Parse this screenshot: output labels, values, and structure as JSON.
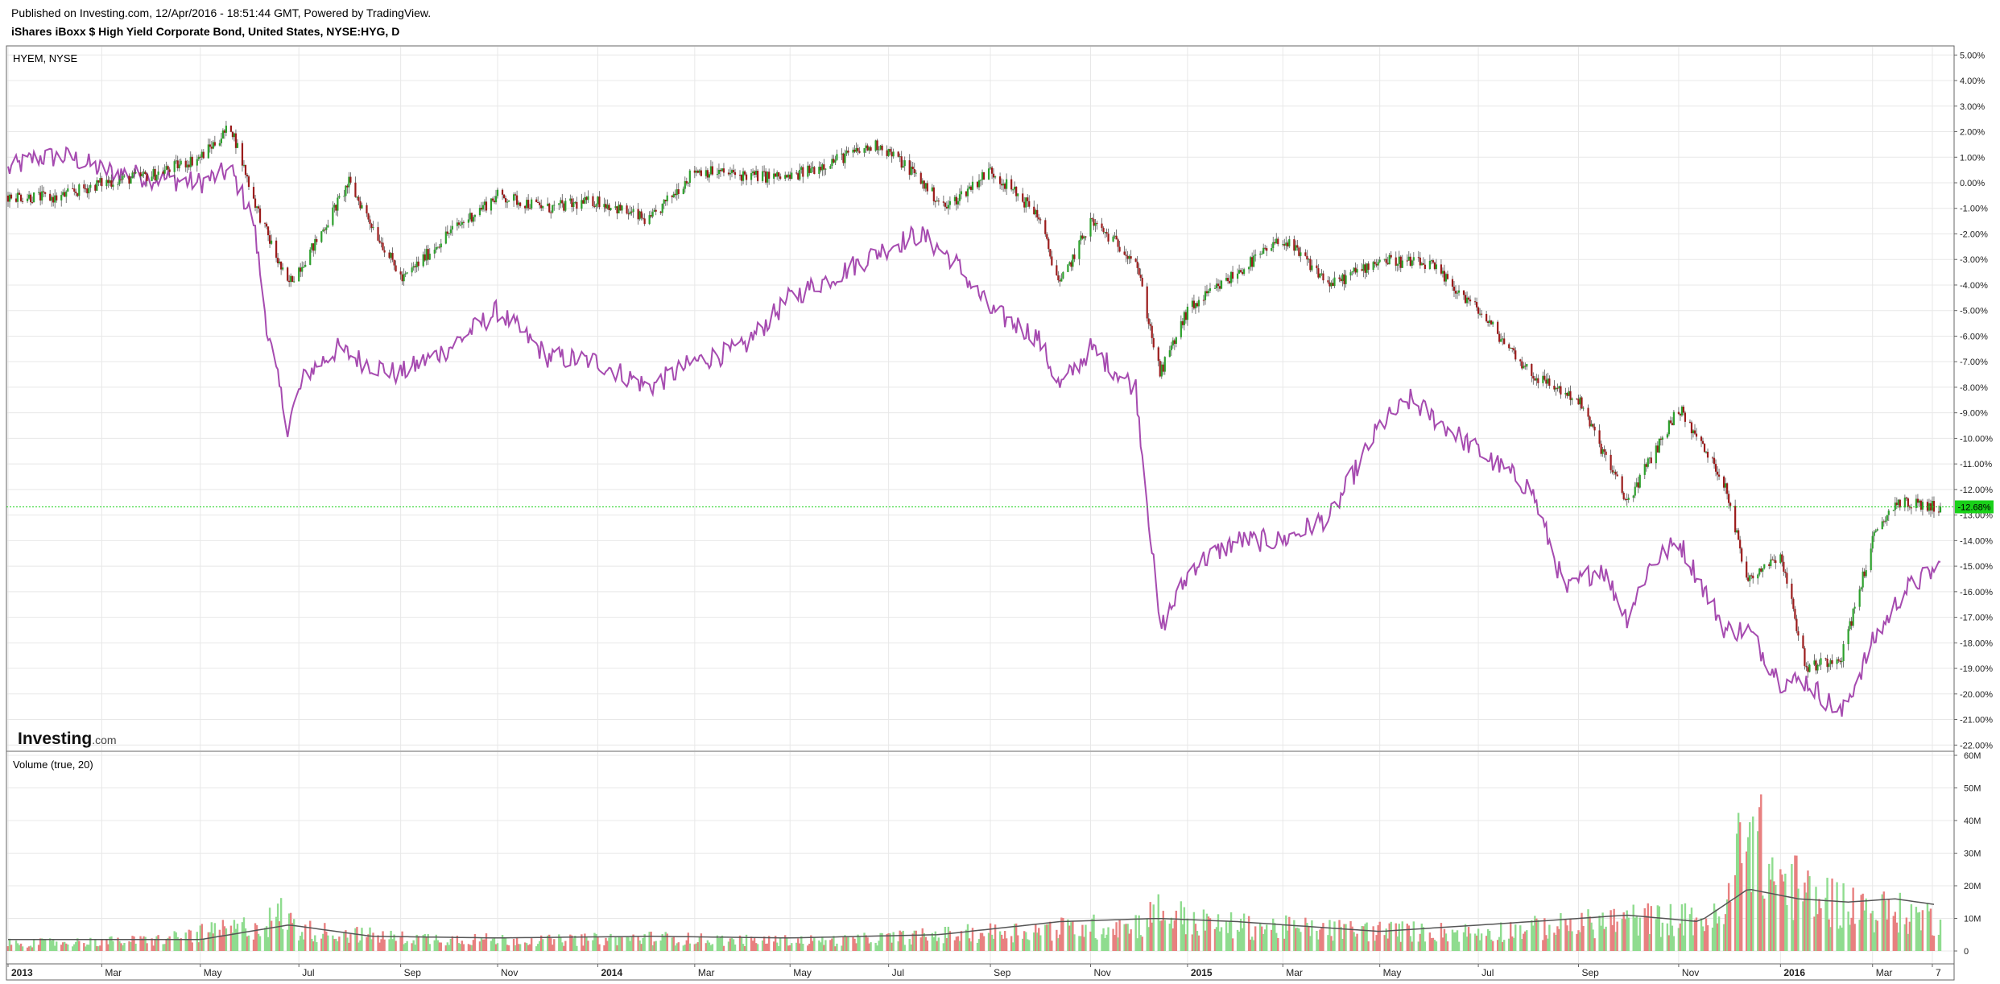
{
  "header": {
    "published": "Published on Investing.com, 12/Apr/2016 - 18:51:44 GMT, Powered by TradingView.",
    "instrument": "iShares iBoxx $ High Yield Corporate Bond, United States, NYSE:HYG, D"
  },
  "main_pane": {
    "label": "HYEM, NYSE",
    "logo_main": "Investing",
    "logo_suffix": ".com"
  },
  "volume_pane": {
    "label": "Volume (true, 20)"
  },
  "last_value_label": "-12.68%",
  "colors": {
    "hyem_line": "#a64bb0",
    "up": "#2ca02c",
    "down": "#9b1b1b",
    "vol_up": "#8fdc8f",
    "vol_down": "#e88080",
    "vol_ma": "#555555",
    "last_marker": "#19d119"
  },
  "chart_data": [
    {
      "type": "line",
      "title": "",
      "x_axis_labels": [
        "2013",
        "Mar",
        "May",
        "Jul",
        "Sep",
        "Nov",
        "2014",
        "Mar",
        "May",
        "Jul",
        "Sep",
        "Nov",
        "2015",
        "Mar",
        "May",
        "Jul",
        "Sep",
        "Nov",
        "2016",
        "Mar",
        "7"
      ],
      "y_axis_labels": [
        "5.00%",
        "4.00%",
        "3.00%",
        "2.00%",
        "1.00%",
        "0.00%",
        "-1.00%",
        "-2.00%",
        "-3.00%",
        "-4.00%",
        "-5.00%",
        "-6.00%",
        "-7.00%",
        "-8.00%",
        "-9.00%",
        "-10.00%",
        "-11.00%",
        "-12.00%",
        "-13.00%",
        "-14.00%",
        "-15.00%",
        "-16.00%",
        "-17.00%",
        "-18.00%",
        "-19.00%",
        "-20.00%",
        "-21.00%",
        "-22.00%"
      ],
      "ylim": [
        -22,
        5
      ],
      "x_range": [
        "2013-01-02",
        "2016-04-12"
      ],
      "last_value": -12.68,
      "series": [
        {
          "name": "HYG",
          "style": "candlestick",
          "x": [
            "2013-01-02",
            "2013-02-01",
            "2013-03-01",
            "2013-04-01",
            "2013-05-01",
            "2013-05-20",
            "2013-06-05",
            "2013-06-24",
            "2013-07-10",
            "2013-08-01",
            "2013-09-03",
            "2013-10-01",
            "2013-11-01",
            "2013-12-02",
            "2014-01-02",
            "2014-02-03",
            "2014-03-03",
            "2014-04-01",
            "2014-05-01",
            "2014-06-02",
            "2014-06-25",
            "2014-07-15",
            "2014-08-05",
            "2014-09-02",
            "2014-10-01",
            "2014-10-15",
            "2014-11-03",
            "2014-12-01",
            "2014-12-16",
            "2015-01-02",
            "2015-02-02",
            "2015-03-02",
            "2015-04-01",
            "2015-05-01",
            "2015-06-01",
            "2015-07-01",
            "2015-08-03",
            "2015-09-01",
            "2015-10-01",
            "2015-11-02",
            "2015-12-01",
            "2015-12-14",
            "2016-01-04",
            "2016-01-20",
            "2016-02-11",
            "2016-03-01",
            "2016-03-15",
            "2016-04-12"
          ],
          "values": [
            -0.5,
            -0.6,
            0.0,
            0.3,
            1.0,
            2.2,
            -1.0,
            -4.0,
            -2.5,
            0.0,
            -3.8,
            -2.0,
            -0.5,
            -1.0,
            -0.7,
            -1.5,
            0.5,
            0.3,
            0.2,
            1.0,
            1.5,
            0.5,
            -1.0,
            0.5,
            -1.2,
            -4.0,
            -1.5,
            -3.0,
            -7.5,
            -5.0,
            -3.5,
            -2.2,
            -4.0,
            -3.0,
            -3.2,
            -5.0,
            -7.5,
            -8.5,
            -12.5,
            -8.8,
            -11.8,
            -15.5,
            -14.5,
            -19.0,
            -18.5,
            -14.0,
            -12.5,
            -12.7
          ]
        },
        {
          "name": "HYEM",
          "style": "line",
          "x": [
            "2013-01-02",
            "2013-01-20",
            "2013-02-10",
            "2013-03-01",
            "2013-04-01",
            "2013-05-01",
            "2013-05-20",
            "2013-06-03",
            "2013-06-12",
            "2013-06-24",
            "2013-07-05",
            "2013-07-25",
            "2013-08-10",
            "2013-09-01",
            "2013-10-01",
            "2013-11-01",
            "2013-12-02",
            "2014-01-02",
            "2014-02-03",
            "2014-03-03",
            "2014-04-01",
            "2014-05-01",
            "2014-06-02",
            "2014-07-01",
            "2014-07-20",
            "2014-08-10",
            "2014-09-02",
            "2014-10-01",
            "2014-10-15",
            "2014-11-03",
            "2014-12-01",
            "2014-12-16",
            "2015-01-05",
            "2015-02-02",
            "2015-03-02",
            "2015-04-01",
            "2015-05-01",
            "2015-05-20",
            "2015-06-10",
            "2015-07-01",
            "2015-08-03",
            "2015-08-24",
            "2015-09-15",
            "2015-10-01",
            "2015-10-15",
            "2015-11-02",
            "2015-12-01",
            "2015-12-15",
            "2016-01-04",
            "2016-01-20",
            "2016-02-11",
            "2016-03-01",
            "2016-03-20",
            "2016-04-12"
          ],
          "values": [
            0.5,
            1.0,
            1.0,
            0.5,
            0.2,
            0.0,
            0.5,
            -1.5,
            -6.0,
            -9.5,
            -7.5,
            -6.5,
            -7.0,
            -7.5,
            -6.5,
            -5.0,
            -6.8,
            -7.0,
            -8.0,
            -7.0,
            -6.5,
            -4.5,
            -3.5,
            -2.5,
            -2.0,
            -3.0,
            -5.0,
            -6.0,
            -8.0,
            -6.5,
            -8.0,
            -17.5,
            -15.0,
            -14.0,
            -14.0,
            -13.0,
            -9.5,
            -8.5,
            -9.5,
            -10.5,
            -12.0,
            -16.0,
            -15.0,
            -17.0,
            -15.0,
            -14.0,
            -17.5,
            -17.5,
            -19.5,
            -19.5,
            -20.8,
            -18.0,
            -16.0,
            -15.0
          ]
        }
      ]
    },
    {
      "type": "bar",
      "title": "",
      "y_axis_labels": [
        "60M",
        "50M",
        "40M",
        "30M",
        "20M",
        "10M",
        "0"
      ],
      "ylim": [
        0,
        60000000
      ],
      "series": [
        {
          "name": "Volume",
          "x": [
            "2013-01-15",
            "2013-04-01",
            "2013-06-10",
            "2013-06-20",
            "2013-07-01",
            "2013-09-01",
            "2013-12-02",
            "2014-02-03",
            "2014-04-01",
            "2014-06-02",
            "2014-08-01",
            "2014-10-01",
            "2014-12-01",
            "2014-12-15",
            "2015-01-15",
            "2015-04-01",
            "2015-07-01",
            "2015-09-01",
            "2015-10-01",
            "2015-12-01",
            "2015-12-11",
            "2015-12-14",
            "2015-12-28",
            "2016-01-20",
            "2016-02-11",
            "2016-03-01",
            "2016-04-12"
          ],
          "values": [
            3000000,
            4000000,
            10000000,
            14000000,
            8000000,
            5000000,
            4000000,
            5000000,
            4000000,
            4000000,
            6000000,
            8000000,
            10000000,
            15000000,
            10000000,
            8000000,
            7000000,
            10000000,
            12000000,
            12000000,
            45000000,
            55000000,
            30000000,
            22000000,
            18000000,
            16000000,
            12000000
          ]
        },
        {
          "name": "Volume MA",
          "x": [
            "2013-01-02",
            "2013-05-01",
            "2013-06-25",
            "2013-08-15",
            "2013-11-01",
            "2014-02-03",
            "2014-05-01",
            "2014-08-01",
            "2014-10-15",
            "2014-12-15",
            "2015-02-02",
            "2015-05-01",
            "2015-08-03",
            "2015-10-01",
            "2015-11-15",
            "2015-12-15",
            "2016-01-15",
            "2016-02-15",
            "2016-03-15",
            "2016-04-12"
          ],
          "values": [
            3500000,
            3500000,
            8000000,
            4500000,
            4000000,
            4500000,
            4000000,
            5000000,
            9000000,
            10000000,
            9000000,
            6000000,
            9000000,
            11000000,
            9000000,
            19000000,
            16000000,
            15000000,
            16000000,
            14000000
          ]
        }
      ]
    }
  ]
}
